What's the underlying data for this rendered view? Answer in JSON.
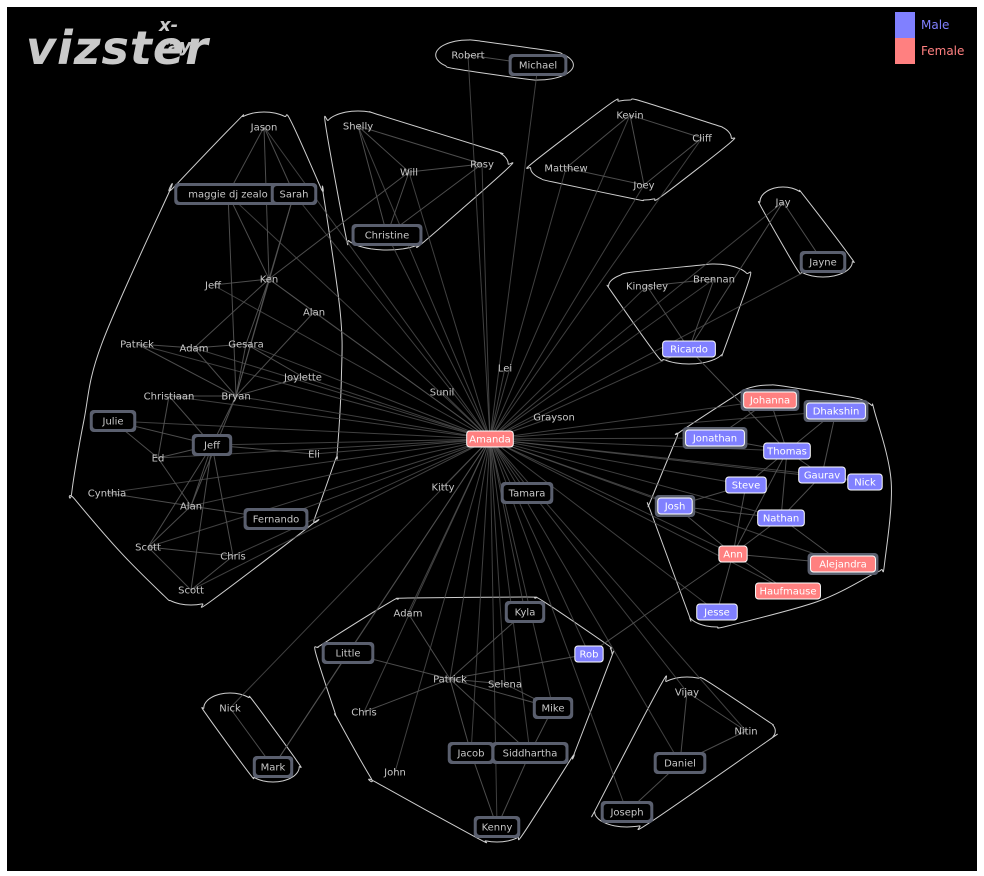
{
  "app": {
    "title": "vizster",
    "title_superscript": "x-ray"
  },
  "colors": {
    "background": "#000000",
    "male": "#8080ff",
    "female": "#ff8080",
    "edge": "#555555",
    "hull": "#cfcfcf",
    "text": "#c8c8c8",
    "box_border": "#5a5f6e"
  },
  "legend": [
    {
      "label": "Male",
      "color": "#8080ff"
    },
    {
      "label": "Female",
      "color": "#ff8080"
    }
  ],
  "center": "Amanda",
  "nodes": [
    {
      "id": "amanda",
      "label": "Amanda",
      "style": "female"
    },
    {
      "id": "robert",
      "label": "Robert",
      "style": "plain"
    },
    {
      "id": "michael",
      "label": "Michael",
      "style": "box"
    },
    {
      "id": "kevin",
      "label": "Kevin",
      "style": "plain"
    },
    {
      "id": "cliff",
      "label": "Cliff",
      "style": "plain"
    },
    {
      "id": "matthew",
      "label": "Matthew",
      "style": "plain"
    },
    {
      "id": "joey",
      "label": "Joey",
      "style": "plain"
    },
    {
      "id": "shelly",
      "label": "Shelly",
      "style": "plain"
    },
    {
      "id": "rosy",
      "label": "Rosy",
      "style": "plain"
    },
    {
      "id": "will",
      "label": "Will",
      "style": "plain"
    },
    {
      "id": "christine",
      "label": "Christine",
      "style": "box"
    },
    {
      "id": "jason",
      "label": "Jason",
      "style": "plain"
    },
    {
      "id": "maggie",
      "label": "maggie dj zealo",
      "style": "box"
    },
    {
      "id": "sarah",
      "label": "Sarah",
      "style": "box"
    },
    {
      "id": "jeff1",
      "label": "Jeff",
      "style": "plain"
    },
    {
      "id": "ken",
      "label": "Ken",
      "style": "plain"
    },
    {
      "id": "alan1",
      "label": "Alan",
      "style": "plain"
    },
    {
      "id": "patrick1",
      "label": "Patrick",
      "style": "plain"
    },
    {
      "id": "adam1",
      "label": "Adam",
      "style": "plain"
    },
    {
      "id": "gesara",
      "label": "Gesara",
      "style": "plain"
    },
    {
      "id": "joylette",
      "label": "Joylette",
      "style": "plain"
    },
    {
      "id": "christiaan",
      "label": "Christiaan",
      "style": "plain"
    },
    {
      "id": "bryan",
      "label": "Bryan",
      "style": "plain"
    },
    {
      "id": "julie",
      "label": "Julie",
      "style": "box"
    },
    {
      "id": "jeff2",
      "label": "Jeff",
      "style": "box"
    },
    {
      "id": "ed",
      "label": "Ed",
      "style": "plain"
    },
    {
      "id": "eli",
      "label": "Eli",
      "style": "plain"
    },
    {
      "id": "cynthia",
      "label": "Cynthia",
      "style": "plain"
    },
    {
      "id": "alan2",
      "label": "Alan",
      "style": "plain"
    },
    {
      "id": "fernando",
      "label": "Fernando",
      "style": "box"
    },
    {
      "id": "scott1",
      "label": "Scott",
      "style": "plain"
    },
    {
      "id": "chris1",
      "label": "Chris",
      "style": "plain"
    },
    {
      "id": "scott2",
      "label": "Scott",
      "style": "plain"
    },
    {
      "id": "sunil",
      "label": "Sunil",
      "style": "plain"
    },
    {
      "id": "lei",
      "label": "Lei",
      "style": "plain"
    },
    {
      "id": "grayson",
      "label": "Grayson",
      "style": "plain"
    },
    {
      "id": "kitty",
      "label": "Kitty",
      "style": "plain"
    },
    {
      "id": "tamara",
      "label": "Tamara",
      "style": "box"
    },
    {
      "id": "jay",
      "label": "Jay",
      "style": "plain"
    },
    {
      "id": "jayne",
      "label": "Jayne",
      "style": "box"
    },
    {
      "id": "kingsley",
      "label": "Kingsley",
      "style": "plain"
    },
    {
      "id": "brennan",
      "label": "Brennan",
      "style": "plain"
    },
    {
      "id": "ricardo",
      "label": "Ricardo",
      "style": "male"
    },
    {
      "id": "johanna",
      "label": "Johanna",
      "style": "female-box"
    },
    {
      "id": "dhakshin",
      "label": "Dhakshin",
      "style": "male-box"
    },
    {
      "id": "jonathan",
      "label": "Jonathan",
      "style": "male-box"
    },
    {
      "id": "thomas",
      "label": "Thomas",
      "style": "male"
    },
    {
      "id": "gaurav",
      "label": "Gaurav",
      "style": "male"
    },
    {
      "id": "nick1",
      "label": "Nick",
      "style": "male"
    },
    {
      "id": "steve",
      "label": "Steve",
      "style": "male"
    },
    {
      "id": "josh",
      "label": "Josh",
      "style": "male-box"
    },
    {
      "id": "nathan",
      "label": "Nathan",
      "style": "male"
    },
    {
      "id": "ann",
      "label": "Ann",
      "style": "female"
    },
    {
      "id": "alejandra",
      "label": "Alejandra",
      "style": "female-box"
    },
    {
      "id": "haufmause",
      "label": "Haufmause",
      "style": "female"
    },
    {
      "id": "jesse",
      "label": "Jesse",
      "style": "male"
    },
    {
      "id": "adam2",
      "label": "Adam",
      "style": "plain"
    },
    {
      "id": "kyla",
      "label": "Kyla",
      "style": "box"
    },
    {
      "id": "little",
      "label": "Little",
      "style": "box"
    },
    {
      "id": "rob",
      "label": "Rob",
      "style": "male"
    },
    {
      "id": "patrick2",
      "label": "Patrick",
      "style": "plain"
    },
    {
      "id": "selena",
      "label": "Selena",
      "style": "plain"
    },
    {
      "id": "chris2",
      "label": "Chris",
      "style": "plain"
    },
    {
      "id": "mike",
      "label": "Mike",
      "style": "box"
    },
    {
      "id": "jacob",
      "label": "Jacob",
      "style": "box"
    },
    {
      "id": "siddhartha",
      "label": "Siddhartha",
      "style": "box"
    },
    {
      "id": "john",
      "label": "John",
      "style": "plain"
    },
    {
      "id": "kenny",
      "label": "Kenny",
      "style": "box"
    },
    {
      "id": "nick2",
      "label": "Nick",
      "style": "plain"
    },
    {
      "id": "mark",
      "label": "Mark",
      "style": "box"
    },
    {
      "id": "vijay",
      "label": "Vijay",
      "style": "plain"
    },
    {
      "id": "nitin",
      "label": "Nitin",
      "style": "plain"
    },
    {
      "id": "daniel",
      "label": "Daniel",
      "style": "box"
    },
    {
      "id": "joseph",
      "label": "Joseph",
      "style": "box"
    }
  ],
  "edges": [
    [
      "robert",
      "michael"
    ],
    [
      "kevin",
      "cliff"
    ],
    [
      "kevin",
      "matthew"
    ],
    [
      "kevin",
      "joey"
    ],
    [
      "cliff",
      "joey"
    ],
    [
      "matthew",
      "joey"
    ],
    [
      "shelly",
      "will"
    ],
    [
      "will",
      "rosy"
    ],
    [
      "shelly",
      "christine"
    ],
    [
      "rosy",
      "christine"
    ],
    [
      "will",
      "christine"
    ],
    [
      "shelly",
      "rosy"
    ],
    [
      "jason",
      "maggie"
    ],
    [
      "jason",
      "sarah"
    ],
    [
      "jason",
      "ken"
    ],
    [
      "maggie",
      "ken"
    ],
    [
      "sarah",
      "ken"
    ],
    [
      "sarah",
      "bryan"
    ],
    [
      "maggie",
      "bryan"
    ],
    [
      "jeff1",
      "ken"
    ],
    [
      "ken",
      "alan1"
    ],
    [
      "ken",
      "gesara"
    ],
    [
      "ken",
      "bryan"
    ],
    [
      "ken",
      "adam1"
    ],
    [
      "ken",
      "will"
    ],
    [
      "patrick1",
      "adam1"
    ],
    [
      "adam1",
      "gesara"
    ],
    [
      "patrick1",
      "bryan"
    ],
    [
      "adam1",
      "bryan"
    ],
    [
      "gesara",
      "bryan"
    ],
    [
      "gesara",
      "joylette"
    ],
    [
      "bryan",
      "joylette"
    ],
    [
      "alan1",
      "bryan"
    ],
    [
      "christiaan",
      "bryan"
    ],
    [
      "christiaan",
      "jeff2"
    ],
    [
      "christiaan",
      "ed"
    ],
    [
      "bryan",
      "jeff2"
    ],
    [
      "jeff2",
      "ed"
    ],
    [
      "julie",
      "ed"
    ],
    [
      "julie",
      "jeff2"
    ],
    [
      "jeff2",
      "eli"
    ],
    [
      "jeff2",
      "alan2"
    ],
    [
      "jeff2",
      "scott1"
    ],
    [
      "jeff2",
      "chris1"
    ],
    [
      "jeff2",
      "scott2"
    ],
    [
      "bryan",
      "alan2"
    ],
    [
      "cynthia",
      "alan2"
    ],
    [
      "alan2",
      "fernando"
    ],
    [
      "alan2",
      "scott1"
    ],
    [
      "scott1",
      "chris1"
    ],
    [
      "chris1",
      "scott2"
    ],
    [
      "scott1",
      "scott2"
    ],
    [
      "ed",
      "alan2"
    ],
    [
      "kingsley",
      "brennan"
    ],
    [
      "kingsley",
      "ricardo"
    ],
    [
      "brennan",
      "ricardo"
    ],
    [
      "jay",
      "jayne"
    ],
    [
      "ricardo",
      "thomas"
    ],
    [
      "johanna",
      "thomas"
    ],
    [
      "dhakshin",
      "thomas"
    ],
    [
      "jonathan",
      "thomas"
    ],
    [
      "thomas",
      "gaurav"
    ],
    [
      "gaurav",
      "nick1"
    ],
    [
      "thomas",
      "steve"
    ],
    [
      "thomas",
      "nathan"
    ],
    [
      "steve",
      "josh"
    ],
    [
      "josh",
      "nathan"
    ],
    [
      "steve",
      "ann"
    ],
    [
      "nathan",
      "ann"
    ],
    [
      "ann",
      "alejandra"
    ],
    [
      "ann",
      "haufmause"
    ],
    [
      "ann",
      "jesse"
    ],
    [
      "nathan",
      "alejandra"
    ],
    [
      "josh",
      "ann"
    ],
    [
      "thomas",
      "ann"
    ],
    [
      "gaurav",
      "nathan"
    ],
    [
      "dhakshin",
      "gaurav"
    ],
    [
      "johanna",
      "jonathan"
    ],
    [
      "adam2",
      "patrick2"
    ],
    [
      "little",
      "patrick2"
    ],
    [
      "kyla",
      "patrick2"
    ],
    [
      "patrick2",
      "selena"
    ],
    [
      "patrick2",
      "mike"
    ],
    [
      "selena",
      "mike"
    ],
    [
      "patrick2",
      "jacob"
    ],
    [
      "patrick2",
      "siddhartha"
    ],
    [
      "mike",
      "siddhartha"
    ],
    [
      "jacob",
      "kenny"
    ],
    [
      "siddhartha",
      "kenny"
    ],
    [
      "chris2",
      "patrick2"
    ],
    [
      "rob",
      "patrick2"
    ],
    [
      "little",
      "mark"
    ],
    [
      "nick2",
      "mark"
    ],
    [
      "vijay",
      "nitin"
    ],
    [
      "vijay",
      "daniel"
    ],
    [
      "nitin",
      "daniel"
    ],
    [
      "daniel",
      "joseph"
    ],
    [
      "rob",
      "ann"
    ],
    [
      "jay",
      "ricardo"
    ]
  ],
  "groups": [
    {
      "name": "group-michael",
      "members": [
        "robert",
        "michael"
      ]
    },
    {
      "name": "group-kevin",
      "members": [
        "kevin",
        "cliff",
        "matthew",
        "joey"
      ]
    },
    {
      "name": "group-shelly",
      "members": [
        "shelly",
        "rosy",
        "will",
        "christine"
      ]
    },
    {
      "name": "group-jason",
      "members": [
        "jason",
        "maggie",
        "sarah",
        "jeff1",
        "ken",
        "alan1",
        "patrick1",
        "adam1",
        "gesara",
        "joylette",
        "christiaan",
        "bryan",
        "julie",
        "jeff2",
        "ed",
        "eli",
        "cynthia",
        "alan2",
        "fernando",
        "scott1",
        "chris1",
        "scott2"
      ]
    },
    {
      "name": "group-jay",
      "members": [
        "jay",
        "jayne"
      ]
    },
    {
      "name": "group-kingsley",
      "members": [
        "kingsley",
        "brennan",
        "ricardo"
      ]
    },
    {
      "name": "group-thomas",
      "members": [
        "johanna",
        "dhakshin",
        "jonathan",
        "thomas",
        "gaurav",
        "nick1",
        "steve",
        "josh",
        "nathan",
        "ann",
        "alejandra",
        "haufmause",
        "jesse"
      ]
    },
    {
      "name": "group-patrick",
      "members": [
        "adam2",
        "kyla",
        "little",
        "rob",
        "patrick2",
        "selena",
        "chris2",
        "mike",
        "jacob",
        "siddhartha",
        "john",
        "kenny"
      ]
    },
    {
      "name": "group-nick",
      "members": [
        "nick2",
        "mark"
      ]
    },
    {
      "name": "group-vijay",
      "members": [
        "vijay",
        "nitin",
        "daniel",
        "joseph"
      ]
    }
  ]
}
